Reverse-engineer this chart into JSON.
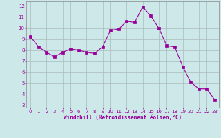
{
  "x": [
    0,
    1,
    2,
    3,
    4,
    5,
    6,
    7,
    8,
    9,
    10,
    11,
    12,
    13,
    14,
    15,
    16,
    17,
    18,
    19,
    20,
    21,
    22,
    23
  ],
  "y": [
    9.2,
    8.3,
    7.8,
    7.4,
    7.8,
    8.1,
    8.0,
    7.8,
    7.7,
    8.3,
    9.8,
    9.9,
    10.6,
    10.5,
    11.9,
    11.1,
    10.0,
    8.4,
    8.3,
    6.5,
    5.1,
    4.5,
    4.5,
    3.5
  ],
  "line_color": "#990099",
  "marker_color": "#990099",
  "bg_color": "#cce8e8",
  "grid_color": "#aabbbb",
  "axis_label_color": "#990099",
  "tick_color": "#990099",
  "spine_color": "#888888",
  "xlabel": "Windchill (Refroidissement éolien,°C)",
  "ylim": [
    2.8,
    12.4
  ],
  "xlim": [
    -0.5,
    23.5
  ],
  "yticks": [
    3,
    4,
    5,
    6,
    7,
    8,
    9,
    10,
    11,
    12
  ],
  "xticks": [
    0,
    1,
    2,
    3,
    4,
    5,
    6,
    7,
    8,
    9,
    10,
    11,
    12,
    13,
    14,
    15,
    16,
    17,
    18,
    19,
    20,
    21,
    22,
    23
  ],
  "tick_fontsize": 5.0,
  "xlabel_fontsize": 5.5,
  "linewidth": 0.8,
  "markersize": 2.2
}
